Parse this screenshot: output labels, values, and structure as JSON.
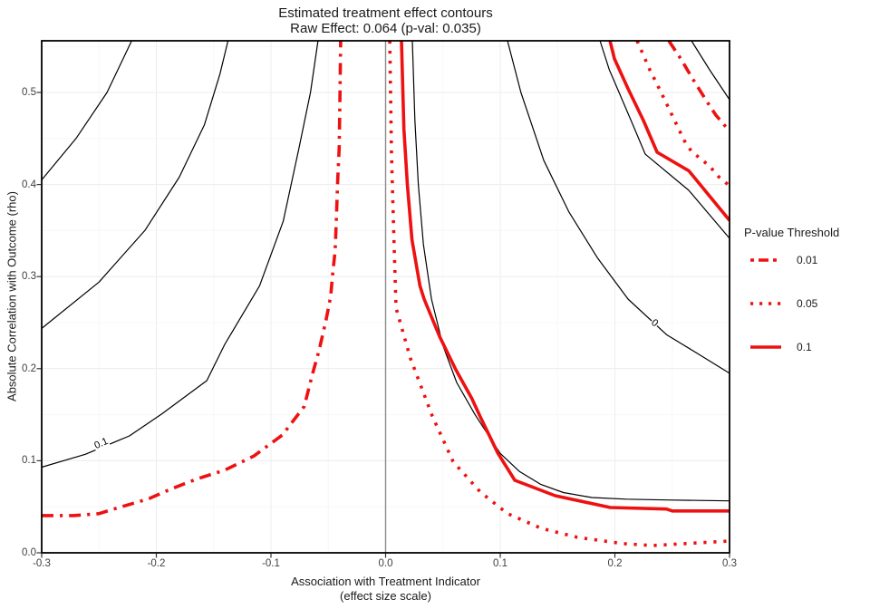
{
  "title": "Estimated treatment effect contours",
  "subtitle": "Raw Effect: 0.064 (p-val: 0.035)",
  "raw_effect": 0.064,
  "p_value": 0.035,
  "x_axis_title_line1": "Association with Treatment Indicator",
  "x_axis_title_line2": "(effect size scale)",
  "y_axis_title": "Absolute Correlation with Outcome (rho)",
  "legend": {
    "title": "P-value Threshold",
    "items": [
      {
        "label": "0.01",
        "style": "dashdot"
      },
      {
        "label": "0.05",
        "style": "dotted"
      },
      {
        "label": "0.1",
        "style": "solid"
      }
    ]
  },
  "colors": {
    "red": "#ee1111",
    "black_contour": "#000000",
    "grid_major": "#ededed",
    "grid_minor": "#f7f7f7",
    "zero_line": "#8a8a8a",
    "panel_border": "#000000",
    "tick": "#333333"
  },
  "chart_data": {
    "type": "contour",
    "title": "Estimated treatment effect contours",
    "subtitle": "Raw Effect: 0.064 (p-val: 0.035)",
    "xlabel": "Association with Treatment Indicator (effect size scale)",
    "ylabel": "Absolute Correlation with Outcome (rho)",
    "x_range": [
      -0.3,
      0.3
    ],
    "y_range": [
      0,
      0.5561
    ],
    "x_ticks": [
      {
        "v": -0.3,
        "t": "-0.3"
      },
      {
        "v": -0.2,
        "t": "-0.2"
      },
      {
        "v": -0.1,
        "t": "-0.1"
      },
      {
        "v": 0,
        "t": "0.0"
      },
      {
        "v": 0.1,
        "t": "0.1"
      },
      {
        "v": 0.2,
        "t": "0.2"
      },
      {
        "v": 0.3,
        "t": "0.3"
      }
    ],
    "y_ticks": [
      {
        "v": 0,
        "t": "0.0"
      },
      {
        "v": 0.1,
        "t": "0.1"
      },
      {
        "v": 0.2,
        "t": "0.2"
      },
      {
        "v": 0.3,
        "t": "0.3"
      },
      {
        "v": 0.4,
        "t": "0.4"
      },
      {
        "v": 0.5,
        "t": "0.5"
      }
    ],
    "x_minor_step": 0.05,
    "y_minor_step": 0.05,
    "zero_line_x": 0,
    "grid": true,
    "legend_position": "right",
    "effect_contours_black": [
      {
        "level": 0.2,
        "points": [
          [
            -0.3,
            0.405
          ],
          [
            -0.27,
            0.45
          ],
          [
            -0.243,
            0.5
          ],
          [
            -0.2215,
            0.5561
          ]
        ]
      },
      {
        "level": 0.15,
        "points": [
          [
            -0.3,
            0.2437
          ],
          [
            -0.25,
            0.294
          ],
          [
            -0.21,
            0.35
          ],
          [
            -0.18,
            0.408
          ],
          [
            -0.158,
            0.465
          ],
          [
            -0.1445,
            0.52
          ],
          [
            -0.1375,
            0.5561
          ]
        ]
      },
      {
        "level": 0.1,
        "points": [
          [
            -0.3,
            0.093
          ],
          [
            -0.262,
            0.107
          ],
          [
            -0.2235,
            0.127
          ],
          [
            -0.1955,
            0.1506
          ],
          [
            -0.156,
            0.187
          ],
          [
            -0.1403,
            0.2264
          ],
          [
            -0.11,
            0.29
          ],
          [
            -0.0893,
            0.36
          ],
          [
            -0.0755,
            0.44
          ],
          [
            -0.0655,
            0.5
          ],
          [
            -0.059,
            0.5561
          ]
        ]
      },
      {
        "level": 0.05,
        "points": [
          [
            0.0233,
            0.5561
          ],
          [
            0.0255,
            0.47
          ],
          [
            0.0285,
            0.4
          ],
          [
            0.033,
            0.335
          ],
          [
            0.04,
            0.2756
          ],
          [
            0.05,
            0.225
          ],
          [
            0.062,
            0.185
          ],
          [
            0.078,
            0.15
          ],
          [
            0.0866,
            0.1337
          ],
          [
            0.1,
            0.108
          ],
          [
            0.1166,
            0.0885
          ],
          [
            0.135,
            0.0745
          ],
          [
            0.155,
            0.0655
          ],
          [
            0.18,
            0.06
          ],
          [
            0.21,
            0.0583
          ],
          [
            0.245,
            0.0574
          ],
          [
            0.3,
            0.0564
          ]
        ]
      },
      {
        "level": 0,
        "points": [
          [
            0.1063,
            0.5561
          ],
          [
            0.118,
            0.5
          ],
          [
            0.138,
            0.426
          ],
          [
            0.16,
            0.37
          ],
          [
            0.185,
            0.32
          ],
          [
            0.2115,
            0.2756
          ],
          [
            0.245,
            0.237
          ],
          [
            0.27,
            0.218
          ],
          [
            0.3,
            0.195
          ]
        ]
      },
      {
        "level": -0.05,
        "points": [
          [
            0.187,
            0.5561
          ],
          [
            0.195,
            0.525
          ],
          [
            0.2036,
            0.5
          ],
          [
            0.2154,
            0.4656
          ],
          [
            0.2265,
            0.433
          ],
          [
            0.2644,
            0.3937
          ],
          [
            0.3,
            0.3415
          ]
        ]
      },
      {
        "level": -0.1,
        "points": [
          [
            0.2668,
            0.5561
          ],
          [
            0.2826,
            0.5246
          ],
          [
            0.3,
            0.4921
          ]
        ]
      }
    ],
    "pvalue_contours_red": [
      {
        "threshold": 0.01,
        "style": "dashdot",
        "points": [
          [
            -0.3,
            0.0405
          ],
          [
            -0.272,
            0.0405
          ],
          [
            -0.25,
            0.0425
          ],
          [
            -0.238,
            0.0472
          ],
          [
            -0.219,
            0.0541
          ],
          [
            -0.206,
            0.0591
          ],
          [
            -0.188,
            0.0689
          ],
          [
            -0.165,
            0.08
          ],
          [
            -0.14,
            0.09
          ],
          [
            -0.115,
            0.105
          ],
          [
            -0.09,
            0.128
          ],
          [
            -0.071,
            0.159
          ],
          [
            -0.064,
            0.193
          ],
          [
            -0.058,
            0.22
          ],
          [
            -0.052,
            0.2525
          ],
          [
            -0.048,
            0.278
          ],
          [
            -0.046,
            0.305
          ],
          [
            -0.044,
            0.328
          ],
          [
            -0.043,
            0.361
          ],
          [
            -0.0418,
            0.404
          ],
          [
            -0.0405,
            0.44
          ],
          [
            -0.0398,
            0.5
          ],
          [
            -0.0392,
            0.5561
          ]
        ]
      },
      {
        "threshold": 0.01,
        "style": "dashdot",
        "points": [
          [
            0.247,
            0.5561
          ],
          [
            0.2565,
            0.5384
          ],
          [
            0.2684,
            0.5138
          ],
          [
            0.2802,
            0.4902
          ],
          [
            0.2881,
            0.4754
          ],
          [
            0.3,
            0.458
          ]
        ]
      },
      {
        "threshold": 0.05,
        "style": "dotted",
        "points": [
          [
            0.0036,
            0.5561
          ],
          [
            0.0051,
            0.433
          ],
          [
            0.007,
            0.35
          ],
          [
            0.0091,
            0.266
          ],
          [
            0.0217,
            0.2109
          ],
          [
            0.0407,
            0.1485
          ],
          [
            0.0589,
            0.099
          ],
          [
            0.0826,
            0.066
          ],
          [
            0.1063,
            0.0426
          ],
          [
            0.1356,
            0.0267
          ],
          [
            0.1672,
            0.0168
          ],
          [
            0.2067,
            0.01
          ],
          [
            0.2328,
            0.0079
          ],
          [
            0.2589,
            0.0098
          ],
          [
            0.3,
            0.0128
          ]
        ]
      },
      {
        "threshold": 0.05,
        "style": "dotted",
        "points": [
          [
            0.2194,
            0.5561
          ],
          [
            0.2304,
            0.5246
          ],
          [
            0.2407,
            0.499
          ],
          [
            0.251,
            0.4724
          ],
          [
            0.2605,
            0.4478
          ],
          [
            0.2668,
            0.436
          ],
          [
            0.2826,
            0.42
          ],
          [
            0.2905,
            0.4085
          ],
          [
            0.3,
            0.3986
          ]
        ]
      },
      {
        "threshold": 0.1,
        "style": "solid",
        "points": [
          [
            0.0138,
            0.5561
          ],
          [
            0.016,
            0.46
          ],
          [
            0.019,
            0.4
          ],
          [
            0.023,
            0.34
          ],
          [
            0.03,
            0.29
          ],
          [
            0.0336,
            0.2756
          ],
          [
            0.047,
            0.235
          ],
          [
            0.0613,
            0.1988
          ],
          [
            0.075,
            0.168
          ],
          [
            0.0826,
            0.1476
          ],
          [
            0.098,
            0.108
          ],
          [
            0.1127,
            0.0787
          ],
          [
            0.148,
            0.062
          ],
          [
            0.196,
            0.0492
          ],
          [
            0.245,
            0.0475
          ],
          [
            0.25,
            0.0455
          ],
          [
            0.3,
            0.0455
          ]
        ]
      },
      {
        "threshold": 0.1,
        "style": "solid",
        "points": [
          [
            0.1957,
            0.5561
          ],
          [
            0.1996,
            0.5365
          ],
          [
            0.2115,
            0.504
          ],
          [
            0.2249,
            0.4695
          ],
          [
            0.2368,
            0.435
          ],
          [
            0.2644,
            0.415
          ],
          [
            0.3,
            0.361
          ]
        ]
      }
    ],
    "contour_labels": [
      {
        "text": "0.1",
        "x": -0.2475,
        "y": 0.118,
        "angle": -24
      },
      {
        "text": "0",
        "x": 0.2344,
        "y": 0.249,
        "angle": 38
      }
    ]
  }
}
